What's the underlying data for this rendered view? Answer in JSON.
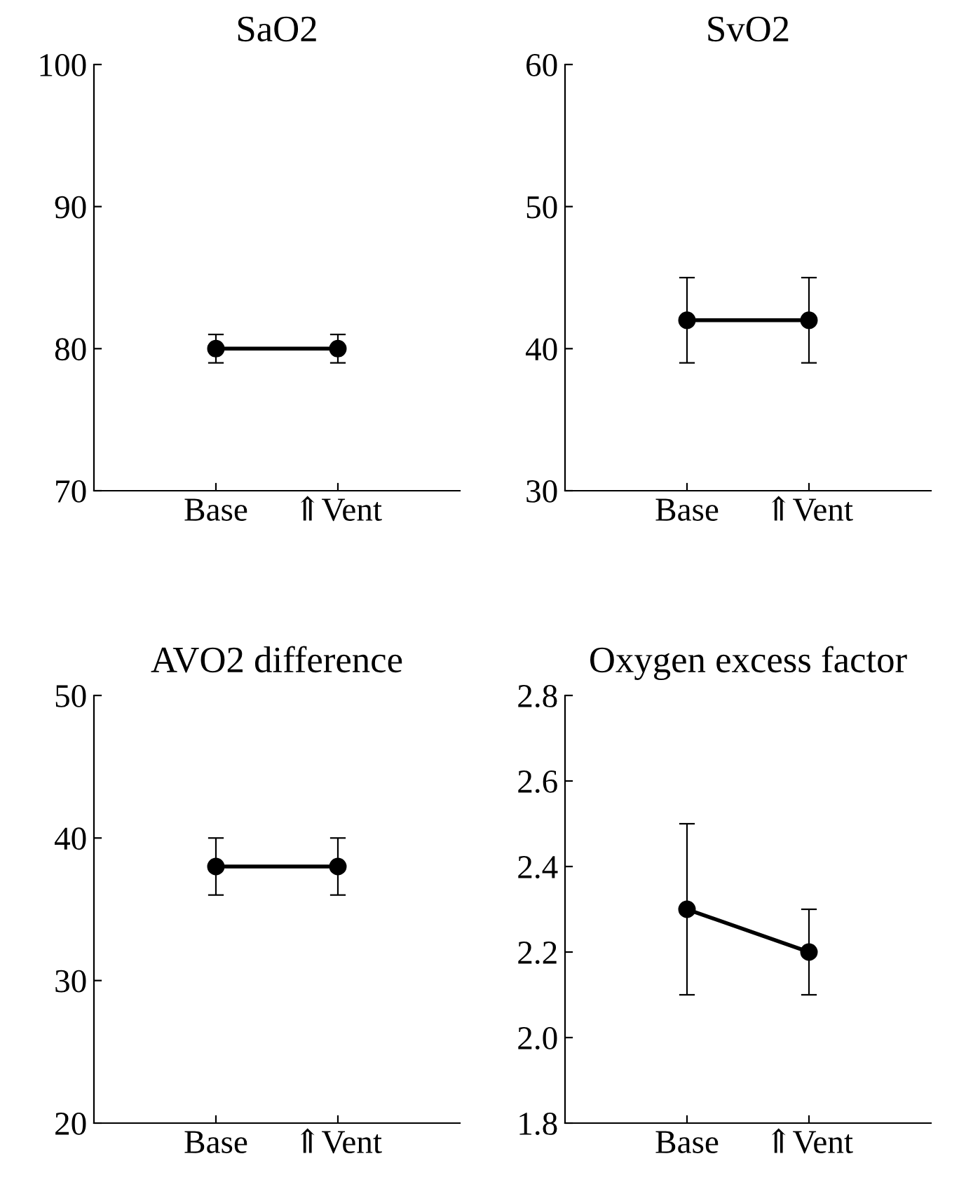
{
  "chart_data": [
    {
      "type": "line",
      "title": "SaO2",
      "categories": [
        "Base",
        "⇑Vent"
      ],
      "series": [
        {
          "color": "#000000",
          "values": [
            80,
            80
          ],
          "errors": [
            1,
            1
          ]
        }
      ],
      "ylim": [
        70,
        100
      ],
      "yticks": [
        70,
        80,
        90,
        100
      ],
      "marker": "circle",
      "line_style": "solid"
    },
    {
      "type": "line",
      "title": "SvO2",
      "categories": [
        "Base",
        "⇑Vent"
      ],
      "series": [
        {
          "color": "#000000",
          "values": [
            42,
            42
          ],
          "errors": [
            3,
            3
          ]
        }
      ],
      "ylim": [
        30,
        60
      ],
      "yticks": [
        30,
        40,
        50,
        60
      ],
      "marker": "circle",
      "line_style": "solid"
    },
    {
      "type": "line",
      "title": "AVO2 difference",
      "categories": [
        "Base",
        "⇑Vent"
      ],
      "series": [
        {
          "color": "#000000",
          "values": [
            38,
            38
          ],
          "errors": [
            2,
            2
          ]
        }
      ],
      "ylim": [
        20,
        50
      ],
      "yticks": [
        20,
        30,
        40,
        50
      ],
      "marker": "circle",
      "line_style": "solid"
    },
    {
      "type": "line",
      "title": "Oxygen excess factor",
      "categories": [
        "Base",
        "⇑Vent"
      ],
      "series": [
        {
          "color": "#000000",
          "values": [
            2.3,
            2.2
          ],
          "errors": [
            0.2,
            0.1
          ]
        }
      ],
      "ylim": [
        1.8,
        2.8
      ],
      "yticks": [
        {
          "value": 1.8,
          "label": "1.8"
        },
        {
          "value": 2.0,
          "label": "2.0"
        },
        {
          "value": 2.2,
          "label": "2.2"
        },
        {
          "value": 2.4,
          "label": "2.4"
        },
        {
          "value": 2.6,
          "label": "2.6"
        },
        {
          "value": 2.8,
          "label": "2.8"
        }
      ],
      "marker": "circle",
      "line_style": "solid"
    }
  ]
}
